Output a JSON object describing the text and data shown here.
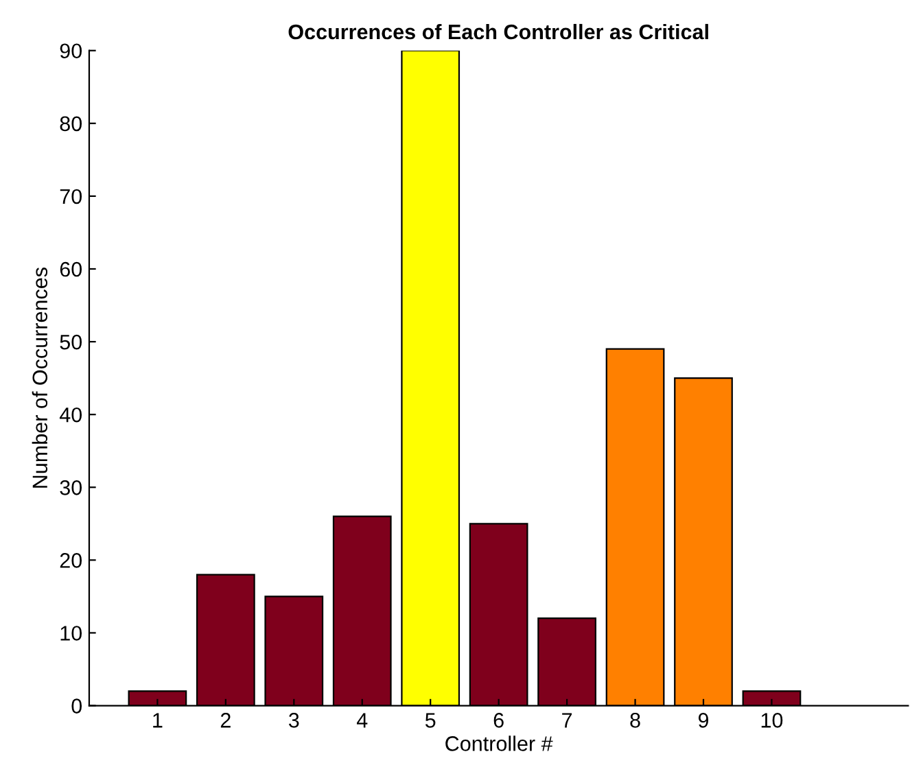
{
  "chart_data": {
    "type": "bar",
    "title": "Occurrences of Each Controller as Critical",
    "xlabel": "Controller #",
    "ylabel": "Number of Occurrences",
    "x": [
      1,
      2,
      3,
      4,
      5,
      6,
      7,
      8,
      9,
      10
    ],
    "values": [
      2,
      18,
      15,
      26,
      90,
      25,
      12,
      49,
      45,
      2
    ],
    "colors": [
      "#7f001c",
      "#7f001c",
      "#7f001c",
      "#7f001c",
      "#ffff00",
      "#7f001c",
      "#7f001c",
      "#ff8000",
      "#ff8000",
      "#7f001c"
    ],
    "xlim": [
      0,
      12
    ],
    "xticks": [
      1,
      2,
      3,
      4,
      5,
      6,
      7,
      8,
      9,
      10
    ],
    "ylim": [
      0,
      90
    ],
    "yticks": [
      0,
      10,
      20,
      30,
      40,
      50,
      60,
      70,
      80,
      90
    ],
    "grid": false,
    "legend": false
  }
}
